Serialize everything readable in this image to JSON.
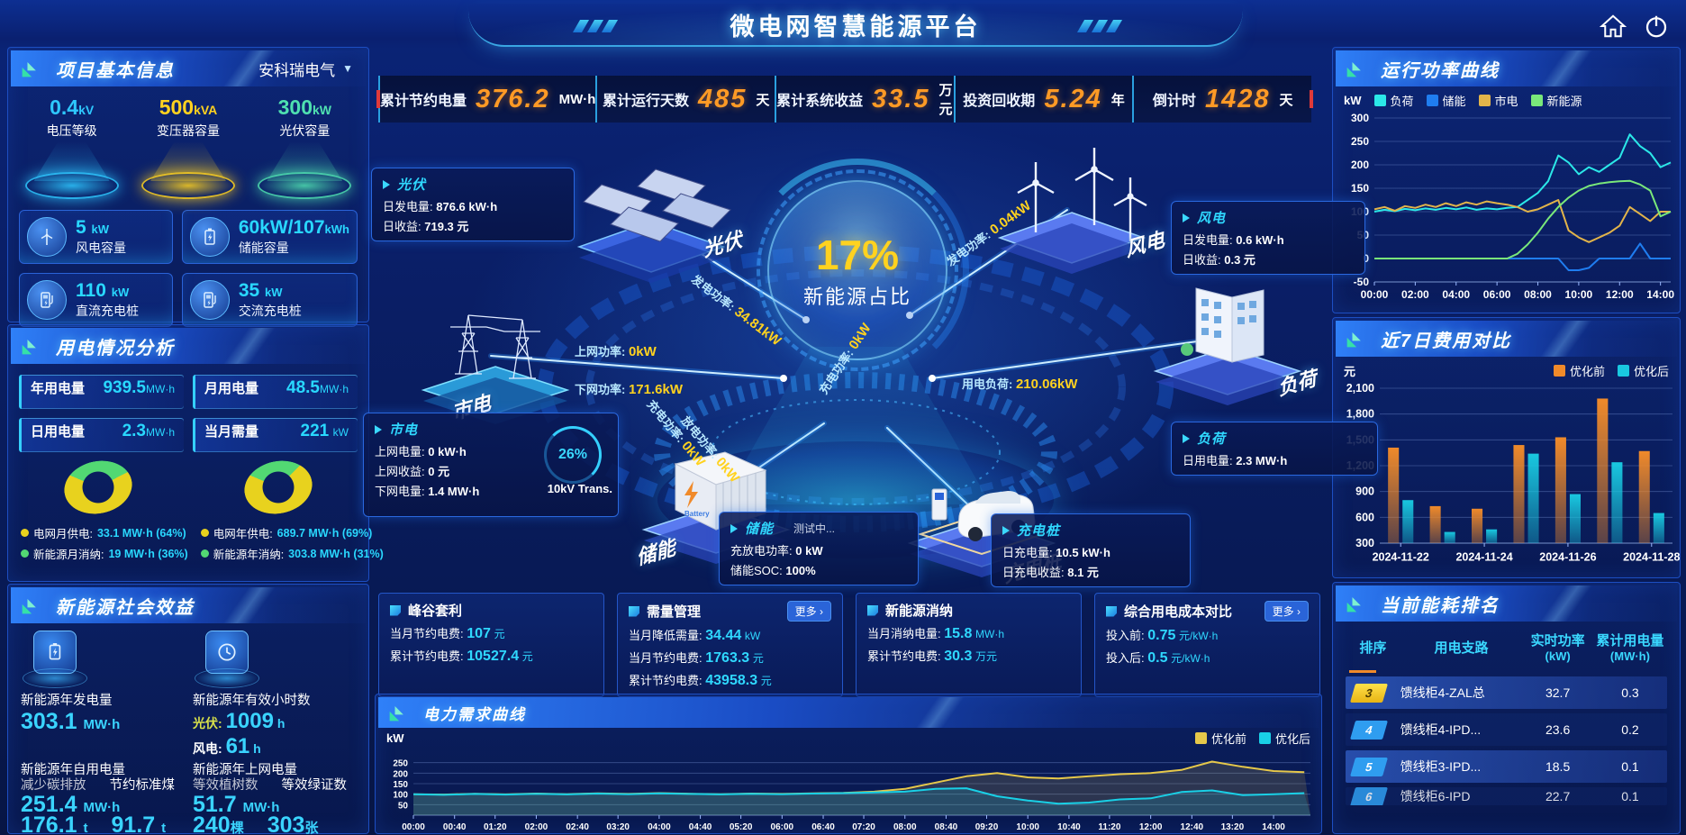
{
  "app": {
    "title": "微电网智慧能源平台"
  },
  "topbar": {
    "stats": [
      {
        "label": "累计节约电量",
        "value": "376.2",
        "unit": "MW·h"
      },
      {
        "label": "累计运行天数",
        "value": "485",
        "unit": "天"
      },
      {
        "label": "累计系统收益",
        "value": "33.5",
        "unit": "万元"
      },
      {
        "label": "投资回收期",
        "value": "5.24",
        "unit": "年"
      },
      {
        "label": "倒计时",
        "value": "1428",
        "unit": "天"
      }
    ]
  },
  "project": {
    "title": "项目基本信息",
    "company": "安科瑞电气",
    "caret": "▼",
    "spotlights": [
      {
        "value": "0.4",
        "unit": "kV",
        "label": "电压等级",
        "color": "#2ec8ff"
      },
      {
        "value": "500",
        "unit": "kVA",
        "label": "变压器容量",
        "color": "#ffd21f"
      },
      {
        "value": "300",
        "unit": "kW",
        "label": "光伏容量",
        "color": "#4fe0b0"
      }
    ],
    "cards": [
      {
        "value": "5",
        "unit": "kW",
        "label": "风电容量"
      },
      {
        "value": "60kW/107",
        "unit": "kWh",
        "label": "储能容量"
      },
      {
        "value": "110",
        "unit": "kW",
        "label": "直流充电桩"
      },
      {
        "value": "35",
        "unit": "kW",
        "label": "交流充电桩"
      }
    ]
  },
  "usage": {
    "title": "用电情况分析",
    "stats": [
      {
        "label": "年用电量",
        "value": "939.5",
        "unit": "MW·h"
      },
      {
        "label": "月用电量",
        "value": "48.5",
        "unit": "MW·h"
      },
      {
        "label": "日用电量",
        "value": "2.3",
        "unit": "MW·h"
      },
      {
        "label": "当月需量",
        "value": "221",
        "unit": "kW"
      }
    ],
    "donuts": [
      {
        "main_pct": 64,
        "main_color": "#e8d21e",
        "sub_color": "#52d873",
        "legend": [
          {
            "label": "电网月供电:",
            "value": "33.1 MW·h (64%)",
            "color": "#e8d21e"
          },
          {
            "label": "新能源月消纳:",
            "value": "19 MW·h (36%)",
            "color": "#52d873"
          }
        ]
      },
      {
        "main_pct": 69,
        "main_color": "#e8d21e",
        "sub_color": "#52d873",
        "legend": [
          {
            "label": "电网年供电:",
            "value": "689.7 MW·h (69%)",
            "color": "#e8d21e"
          },
          {
            "label": "新能源年消纳:",
            "value": "303.8 MW·h (31%)",
            "color": "#52d873"
          }
        ]
      }
    ]
  },
  "benefits": {
    "title": "新能源社会效益",
    "gen": {
      "label": "新能源年发电量",
      "value": "303.1",
      "unit": "MW·h"
    },
    "hours": {
      "label": "新能源年有效小时数",
      "pv_k": "光伏:",
      "pv_v": "1009",
      "pv_u": "h",
      "wind_k": "风电:",
      "wind_v": "61",
      "wind_u": "h"
    },
    "self_use": {
      "label": "新能源年自用电量",
      "value": "251.4",
      "unit": "MW·h"
    },
    "co2": {
      "label": "减少碳排放",
      "value": "176.1",
      "unit": "t"
    },
    "coal": {
      "label": "节约标准煤",
      "value": "91.7",
      "unit": "t"
    },
    "to_grid": {
      "label": "新能源年上网电量",
      "value": "51.7",
      "unit": "MW·h"
    },
    "trees": {
      "label": "等效植树数",
      "value": "240",
      "unit": "棵"
    },
    "certs": {
      "label": "等效绿证数",
      "value": "303",
      "unit": "张"
    }
  },
  "center": {
    "percent": "17%",
    "percent_label": "新能源占比",
    "transformer_pct": "26%",
    "transformer_label": "10kV Trans.",
    "nodes": {
      "pv": "光伏",
      "wind": "风电",
      "grid": "市电",
      "load": "负荷",
      "storage": "储能",
      "charger": "充电桩"
    },
    "callouts": {
      "pv": {
        "title": "光伏",
        "r0k": "日发电量:",
        "r0v": "876.6 kW·h",
        "r1k": "日收益:",
        "r1v": "719.3 元"
      },
      "wind": {
        "title": "风电",
        "r0k": "日发电量:",
        "r0v": "0.6 kW·h",
        "r1k": "日收益:",
        "r1v": "0.3 元"
      },
      "grid": {
        "title": "市电",
        "r0k": "上网电量:",
        "r0v": "0 kW·h",
        "r1k": "上网收益:",
        "r1v": "0 元",
        "r2k": "下网电量:",
        "r2v": "1.4 MW·h"
      },
      "load": {
        "title": "负荷",
        "r0k": "日用电量:",
        "r0v": "2.3 MW·h"
      },
      "storage": {
        "title": "储能",
        "badge": "测试中...",
        "r0k": "充放电功率:",
        "r0v": "0 kW",
        "r1k": "储能SOC:",
        "r1v": "100%"
      },
      "charger": {
        "title": "充电桩",
        "r0k": "日充电量:",
        "r0v": "10.5 kW·h",
        "r1k": "日充电收益:",
        "r1v": "8.1 元"
      }
    },
    "flows": [
      {
        "label": "发电功率:",
        "value": "34.81kW"
      },
      {
        "label": "上网功率:",
        "value": "0kW"
      },
      {
        "label": "下网功率:",
        "value": "171.6kW"
      },
      {
        "label": "发电功率:",
        "value": "0.04kW"
      },
      {
        "label": "用电负荷:",
        "value": "210.06kW"
      },
      {
        "label": "充电功率:",
        "value": "0kW"
      },
      {
        "label": "放电功率:",
        "value": "0kW"
      },
      {
        "label": "充电功率:",
        "value": "0kW"
      }
    ]
  },
  "kpis": [
    {
      "title": "峰谷套利",
      "more": "",
      "rows": [
        {
          "k": "当月节约电费:",
          "v": "107",
          "u": "元"
        },
        {
          "k": "累计节约电费:",
          "v": "10527.4",
          "u": "元"
        }
      ]
    },
    {
      "title": "需量管理",
      "more": "更多 ›",
      "rows": [
        {
          "k": "当月降低需量:",
          "v": "34.44",
          "u": "kW"
        },
        {
          "k": "当月节约电费:",
          "v": "1763.3",
          "u": "元"
        },
        {
          "k": "累计节约电费:",
          "v": "43958.3",
          "u": "元"
        }
      ]
    },
    {
      "title": "新能源消纳",
      "more": "",
      "rows": [
        {
          "k": "当月消纳电量:",
          "v": "15.8",
          "u": "MW·h"
        },
        {
          "k": "累计节约电费:",
          "v": "30.3",
          "u": "万元"
        }
      ]
    },
    {
      "title": "综合用电成本对比",
      "more": "更多 ›",
      "rows": [
        {
          "k": "投入前:",
          "v": "0.75",
          "u": "元/kW·h"
        },
        {
          "k": "投入后:",
          "v": "0.5",
          "u": "元/kW·h"
        }
      ]
    }
  ],
  "ranking": {
    "title": "当前能耗排名",
    "col_rank": "排序",
    "col_branch": "用电支路",
    "col_power": "实时功率",
    "col_power_unit": "(kW)",
    "col_energy": "累计用电量",
    "col_energy_unit": "(MW·h)",
    "rows": [
      {
        "rank": "3",
        "branch": "馈线柜4-ZAL总",
        "power": "32.7",
        "energy": "0.3"
      },
      {
        "rank": "4",
        "branch": "馈线柜4-IPD...",
        "power": "23.6",
        "energy": "0.2"
      },
      {
        "rank": "5",
        "branch": "馈线柜3-IPD...",
        "power": "18.5",
        "energy": "0.1"
      },
      {
        "rank": "6",
        "branch": "馈线柜6-IPD",
        "power": "22.7",
        "energy": "0.1"
      }
    ]
  },
  "chart_data": [
    {
      "id": "power-curve",
      "type": "line",
      "title": "运行功率曲线",
      "ylabel": "kW",
      "ylim": [
        -50,
        300
      ],
      "yticks": [
        300,
        250,
        200,
        150,
        100,
        50,
        0,
        -50
      ],
      "xlim": [
        0,
        14.5
      ],
      "grid": true,
      "legend_position": "top",
      "xticks": [
        {
          "v": 0,
          "l": "00:00"
        },
        {
          "v": 2,
          "l": "02:00"
        },
        {
          "v": 4,
          "l": "04:00"
        },
        {
          "v": 6,
          "l": "06:00"
        },
        {
          "v": 8,
          "l": "08:00"
        },
        {
          "v": 10,
          "l": "10:00"
        },
        {
          "v": 12,
          "l": "12:00"
        },
        {
          "v": 14,
          "l": "14:00"
        }
      ],
      "x": [
        0,
        0.5,
        1,
        1.5,
        2,
        2.5,
        3,
        3.5,
        4,
        4.5,
        5,
        5.5,
        6,
        6.5,
        7,
        7.5,
        8,
        8.5,
        9,
        9.5,
        10,
        10.5,
        11,
        11.5,
        12,
        12.5,
        13,
        13.5,
        14,
        14.5
      ],
      "series": [
        {
          "name": "负荷",
          "color": "#2be8e8",
          "y": [
            100,
            104,
            101,
            106,
            103,
            107,
            104,
            108,
            105,
            109,
            104,
            107,
            105,
            108,
            110,
            125,
            140,
            165,
            220,
            205,
            180,
            195,
            185,
            200,
            215,
            265,
            240,
            225,
            195,
            205
          ]
        },
        {
          "name": "储能",
          "color": "#1f7df0",
          "y": [
            0,
            0,
            0,
            0,
            0,
            0,
            0,
            0,
            0,
            0,
            0,
            0,
            0,
            0,
            0,
            0,
            0,
            0,
            0,
            -25,
            -25,
            -20,
            0,
            0,
            0,
            0,
            32,
            0,
            0,
            0
          ]
        },
        {
          "name": "市电",
          "color": "#e2b44a",
          "y": [
            105,
            110,
            102,
            112,
            108,
            115,
            110,
            118,
            112,
            120,
            115,
            122,
            118,
            115,
            110,
            100,
            105,
            115,
            125,
            60,
            45,
            35,
            45,
            55,
            70,
            110,
            95,
            80,
            100,
            100
          ]
        },
        {
          "name": "新能源",
          "color": "#79e87a",
          "y": [
            0,
            0,
            0,
            0,
            0,
            0,
            0,
            0,
            0,
            0,
            0,
            0,
            0,
            0,
            10,
            30,
            55,
            85,
            110,
            130,
            145,
            155,
            160,
            163,
            165,
            166,
            158,
            145,
            90,
            100
          ]
        }
      ]
    },
    {
      "id": "cost-compare",
      "type": "bar",
      "title": "近7日费用对比",
      "ylabel": "元",
      "ylim": [
        300,
        2100
      ],
      "yticks": [
        2100,
        1800,
        1500,
        1200,
        900,
        600,
        300
      ],
      "grid": true,
      "categories": [
        "2024-11-22",
        "2024-11-23",
        "2024-11-24",
        "2024-11-25",
        "2024-11-26",
        "2024-11-27",
        "2024-11-28"
      ],
      "xtick_show": [
        "2024-11-22",
        "2024-11-24",
        "2024-11-26",
        "2024-11-28"
      ],
      "series": [
        {
          "name": "优化前",
          "color": "#f08a2a",
          "values": [
            1410,
            730,
            700,
            1440,
            1530,
            1980,
            1370
          ]
        },
        {
          "name": "优化后",
          "color": "#19c8e0",
          "values": [
            800,
            430,
            460,
            1340,
            870,
            1240,
            650
          ]
        }
      ]
    },
    {
      "id": "demand-curve",
      "type": "line",
      "title": "电力需求曲线",
      "ylabel": "kW",
      "ylim": [
        0,
        300
      ],
      "yticks": [
        250,
        200,
        150,
        100,
        50
      ],
      "xlim": [
        0,
        14.6
      ],
      "grid": true,
      "xticks": [
        {
          "v": 0,
          "l": "00:00"
        },
        {
          "v": 0.67,
          "l": "00:40"
        },
        {
          "v": 1.33,
          "l": "01:20"
        },
        {
          "v": 2,
          "l": "02:00"
        },
        {
          "v": 2.67,
          "l": "02:40"
        },
        {
          "v": 3.33,
          "l": "03:20"
        },
        {
          "v": 4,
          "l": "04:00"
        },
        {
          "v": 4.67,
          "l": "04:40"
        },
        {
          "v": 5.33,
          "l": "05:20"
        },
        {
          "v": 6,
          "l": "06:00"
        },
        {
          "v": 6.67,
          "l": "06:40"
        },
        {
          "v": 7.33,
          "l": "07:20"
        },
        {
          "v": 8,
          "l": "08:00"
        },
        {
          "v": 8.67,
          "l": "08:40"
        },
        {
          "v": 9.33,
          "l": "09:20"
        },
        {
          "v": 10,
          "l": "10:00"
        },
        {
          "v": 10.67,
          "l": "10:40"
        },
        {
          "v": 11.33,
          "l": "11:20"
        },
        {
          "v": 12,
          "l": "12:00"
        },
        {
          "v": 12.67,
          "l": "12:40"
        },
        {
          "v": 13.33,
          "l": "13:20"
        },
        {
          "v": 14,
          "l": "14:00"
        }
      ],
      "x": [
        0,
        0.5,
        1,
        1.5,
        2,
        2.5,
        3,
        3.5,
        4,
        4.5,
        5,
        5.5,
        6,
        6.5,
        7,
        7.5,
        8,
        8.5,
        9,
        9.5,
        10,
        10.5,
        11,
        11.5,
        12,
        12.5,
        13,
        13.5,
        14,
        14.5
      ],
      "series": [
        {
          "name": "优化前",
          "color": "#e6c84a",
          "area": true,
          "y": [
            100,
            98,
            102,
            99,
            103,
            100,
            104,
            101,
            105,
            102,
            100,
            103,
            101,
            104,
            106,
            112,
            125,
            155,
            185,
            200,
            180,
            175,
            185,
            195,
            200,
            215,
            255,
            230,
            210,
            205
          ]
        },
        {
          "name": "优化后",
          "color": "#19d0e6",
          "area": true,
          "y": [
            100,
            97,
            101,
            98,
            102,
            99,
            103,
            100,
            104,
            101,
            99,
            102,
            100,
            103,
            105,
            108,
            112,
            125,
            128,
            90,
            70,
            55,
            60,
            75,
            80,
            110,
            118,
            95,
            100,
            105
          ]
        }
      ]
    }
  ]
}
